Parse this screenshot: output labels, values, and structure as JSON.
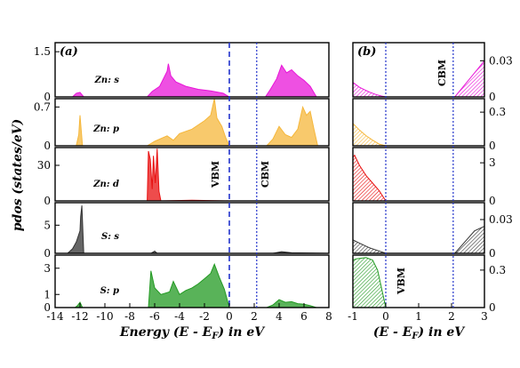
{
  "chart_data": [
    {
      "type": "area",
      "panel": "(a)",
      "xlabel": "Energy (E - E",
      "xlabel_sub": "F",
      "xlabel_tail": ") in eV",
      "ylabel": "pdos (states/eV)",
      "xlim": [
        -14,
        8
      ],
      "x_ticks": [
        -14,
        -12,
        -10,
        -8,
        -6,
        -4,
        -2,
        0,
        2,
        4,
        6,
        8
      ],
      "vlines": [
        {
          "x": 0,
          "label": "VBM",
          "style": "dashed"
        },
        {
          "x": 2.2,
          "label": "CBM",
          "style": "dotted"
        }
      ],
      "rows": [
        {
          "label": "Zn: s",
          "color": "#e815d8",
          "ylim": [
            0,
            1.8
          ],
          "y_ticks": [
            "0",
            "1.5"
          ],
          "x": [
            -14,
            -12.6,
            -12.3,
            -12.0,
            -11.7,
            -6.6,
            -6.2,
            -5.6,
            -5.0,
            -4.9,
            -4.7,
            -4.3,
            -3.5,
            -2.5,
            -1.5,
            -0.5,
            0,
            2.9,
            3.3,
            3.8,
            4.2,
            4.6,
            5.0,
            5.5,
            6.0,
            6.5,
            7.0,
            8
          ],
          "y": [
            0,
            0,
            0.12,
            0.15,
            0,
            0,
            0.18,
            0.35,
            0.85,
            1.1,
            0.7,
            0.5,
            0.35,
            0.25,
            0.2,
            0.12,
            0,
            0,
            0.25,
            0.6,
            1.05,
            0.8,
            0.9,
            0.7,
            0.55,
            0.35,
            0,
            0
          ]
        },
        {
          "label": "Zn: p",
          "color": "#f5b73b",
          "ylim": [
            0,
            0.85
          ],
          "y_ticks": [
            "0",
            "0.7"
          ],
          "x": [
            -14,
            -12.3,
            -12.1,
            -12.0,
            -11.8,
            -6.6,
            -6.0,
            -5.0,
            -4.5,
            -4.0,
            -3.0,
            -2.0,
            -1.5,
            -1.2,
            -1.0,
            -0.6,
            -0.3,
            0,
            3.0,
            3.5,
            4.0,
            4.5,
            5.0,
            5.5,
            5.9,
            6.2,
            6.5,
            6.8,
            7.1,
            8
          ],
          "y": [
            0,
            0,
            0.2,
            0.55,
            0,
            0,
            0.08,
            0.18,
            0.1,
            0.22,
            0.3,
            0.45,
            0.55,
            0.85,
            0.5,
            0.35,
            0.15,
            0,
            0,
            0.12,
            0.35,
            0.2,
            0.15,
            0.3,
            0.7,
            0.55,
            0.62,
            0.3,
            0,
            0
          ]
        },
        {
          "label": "Zn: d",
          "color": "#e81010",
          "ylim": [
            0,
            45
          ],
          "y_ticks": [
            "0",
            "30"
          ],
          "x": [
            -14,
            -6.6,
            -6.5,
            -6.35,
            -6.2,
            -6.1,
            -5.95,
            -5.8,
            -5.65,
            -5.5,
            -3.0,
            0,
            8
          ],
          "y": [
            0,
            0,
            42,
            35,
            10,
            38,
            15,
            44,
            8,
            0,
            0.5,
            0,
            0
          ]
        },
        {
          "label": "S: s",
          "color": "#333333",
          "ylim": [
            0,
            9
          ],
          "y_ticks": [
            "0",
            "5"
          ],
          "x": [
            -14,
            -13.0,
            -12.6,
            -12.3,
            -12.0,
            -11.95,
            -11.85,
            -11.7,
            -6.3,
            -6.0,
            -5.8,
            0,
            3.5,
            4.2,
            5.0,
            8
          ],
          "y": [
            0,
            0,
            0.8,
            2.0,
            4.0,
            6.5,
            8.5,
            0,
            0,
            0.4,
            0,
            0,
            0,
            0.3,
            0.1,
            0
          ]
        },
        {
          "label": "S: p",
          "color": "#229a22",
          "ylim": [
            0,
            4
          ],
          "y_ticks": [
            "0",
            "1",
            "3"
          ],
          "x": [
            -14,
            -12.4,
            -12.2,
            -12.0,
            -11.8,
            -6.5,
            -6.3,
            -6.0,
            -5.5,
            -4.8,
            -4.5,
            -4.0,
            -3.5,
            -3.0,
            -2.5,
            -2.0,
            -1.5,
            -1.2,
            -0.8,
            -0.4,
            0,
            3.0,
            3.5,
            4.0,
            4.5,
            5.0,
            5.5,
            6.0,
            6.5,
            7.0,
            8
          ],
          "y": [
            0,
            0,
            0.15,
            0.4,
            0,
            0,
            2.8,
            1.5,
            1.0,
            1.2,
            2.0,
            1.0,
            1.3,
            1.5,
            1.8,
            2.2,
            2.6,
            3.3,
            2.3,
            1.4,
            0,
            0,
            0.2,
            0.6,
            0.4,
            0.45,
            0.3,
            0.25,
            0.15,
            0,
            0
          ]
        }
      ]
    },
    {
      "type": "area",
      "panel": "(b)",
      "xlabel": "(E - E",
      "xlabel_sub": "F",
      "xlabel_tail": ") in eV",
      "xlim": [
        -1,
        3
      ],
      "x_ticks": [
        -1,
        0,
        1,
        2,
        3
      ],
      "vlines": [
        {
          "x": 0,
          "label": "VBM",
          "style": "dotted"
        },
        {
          "x": 2.05,
          "label": "CBM",
          "style": "dotted"
        }
      ],
      "rows": [
        {
          "color": "#e815d8",
          "ylim": [
            0,
            0.045
          ],
          "y_ticks": [
            "0",
            "0.03"
          ],
          "x": [
            -1,
            -0.8,
            -0.5,
            -0.3,
            -0.1,
            0,
            2.1,
            2.4,
            2.7,
            3
          ],
          "y": [
            0.012,
            0.008,
            0.004,
            0.002,
            0.0005,
            0,
            0,
            0.01,
            0.02,
            0.03
          ]
        },
        {
          "color": "#f5b73b",
          "ylim": [
            0,
            0.42
          ],
          "y_ticks": [
            "0",
            "0.3"
          ],
          "x": [
            -1,
            -0.8,
            -0.6,
            -0.4,
            -0.2,
            0,
            3
          ],
          "y": [
            0.2,
            0.14,
            0.09,
            0.05,
            0.015,
            0,
            0
          ]
        },
        {
          "color": "#e81010",
          "ylim": [
            0,
            4.2
          ],
          "y_ticks": [
            "0",
            "3"
          ],
          "x": [
            -1,
            -0.95,
            -0.8,
            -0.6,
            -0.4,
            -0.2,
            0,
            3
          ],
          "y": [
            3.4,
            3.6,
            2.8,
            2.0,
            1.4,
            0.8,
            0,
            0
          ]
        },
        {
          "color": "#333333",
          "ylim": [
            0,
            0.045
          ],
          "y_ticks": [
            "0",
            "0.03"
          ],
          "x": [
            -1,
            -0.8,
            -0.5,
            -0.3,
            -0.1,
            0,
            2.1,
            2.4,
            2.7,
            3
          ],
          "y": [
            0.012,
            0.009,
            0.005,
            0.003,
            0.001,
            0,
            0,
            0.01,
            0.02,
            0.024
          ]
        },
        {
          "color": "#229a22",
          "ylim": [
            0,
            0.42
          ],
          "y_ticks": [
            "0",
            "0.3"
          ],
          "x": [
            -1,
            -0.9,
            -0.6,
            -0.4,
            -0.25,
            -0.1,
            0,
            3
          ],
          "y": [
            0.38,
            0.39,
            0.4,
            0.38,
            0.3,
            0.12,
            0,
            0
          ]
        }
      ]
    }
  ]
}
